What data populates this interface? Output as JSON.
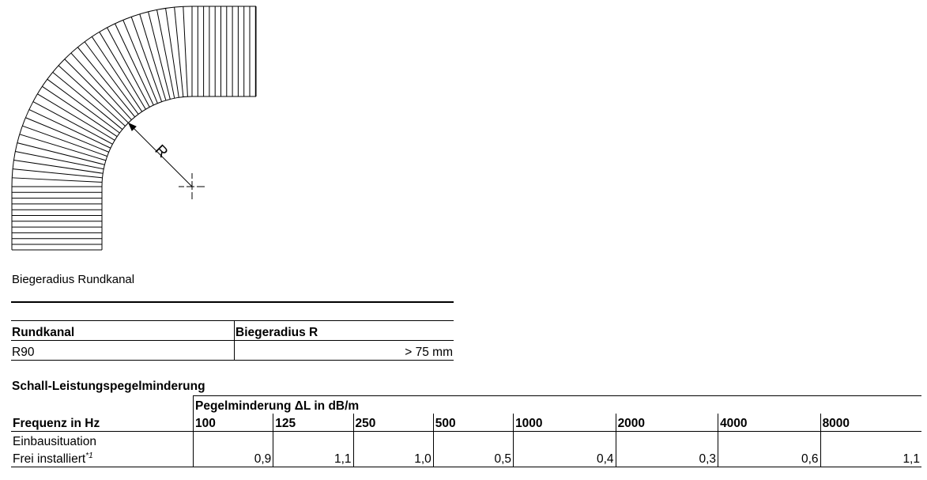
{
  "figure": {
    "label_R": "R"
  },
  "caption": "Biegeradius Rundkanal",
  "radius_table": {
    "headers": [
      "Rundkanal",
      "Biegeradius R"
    ],
    "rows": [
      [
        "R90",
        "> 75 mm"
      ]
    ]
  },
  "sound_table": {
    "title": "Schall-Leistungspegelminderung",
    "group_header": "Pegelminderung ΔL in dB/m",
    "row_header": "Frequenz in Hz",
    "frequencies": [
      "100",
      "125",
      "250",
      "500",
      "1000",
      "2000",
      "4000",
      "8000"
    ],
    "situation_label": "Einbausituation",
    "row_label": "Frei installiert",
    "row_note": "*1",
    "values": [
      "0,9",
      "1,1",
      "1,0",
      "0,5",
      "0,4",
      "0,3",
      "0,6",
      "1,1"
    ]
  }
}
